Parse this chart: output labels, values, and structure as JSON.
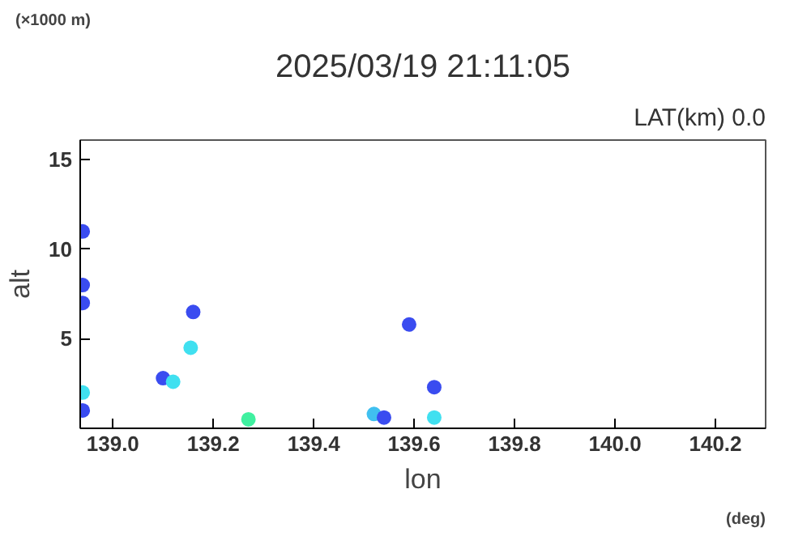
{
  "chart_data": {
    "type": "scatter",
    "title": "2025/03/19 21:11:05",
    "subtitle": "LAT(km) 0.0",
    "xlabel": "lon",
    "ylabel": "alt",
    "annotations": [
      "(×1000 m)",
      "(deg)"
    ],
    "x": [
      138.94,
      138.94,
      138.94,
      138.94,
      138.94,
      139.1,
      139.12,
      139.16,
      139.155,
      139.27,
      139.59,
      139.52,
      139.54,
      139.64,
      139.64
    ],
    "values": [
      11.0,
      8.0,
      7.0,
      2.0,
      1.0,
      2.8,
      2.6,
      6.5,
      4.5,
      0.5,
      5.8,
      0.8,
      0.6,
      2.3,
      0.6
    ],
    "colors": [
      "#3a4cf0",
      "#3a4cf0",
      "#3a4cf0",
      "#40e0f0",
      "#3a4cf0",
      "#3a4cf0",
      "#40e0f0",
      "#3a4cf0",
      "#40e0f0",
      "#40f0a0",
      "#3a4cf0",
      "#40c0f0",
      "#3a4cf0",
      "#3a4cf0",
      "#40e0f0"
    ],
    "xlim": [
      138.935,
      140.3
    ],
    "ylim": [
      0,
      16.1
    ],
    "xticks": [
      {
        "value": 139.0,
        "label": "139.0"
      },
      {
        "value": 139.2,
        "label": "139.2"
      },
      {
        "value": 139.4,
        "label": "139.4"
      },
      {
        "value": 139.6,
        "label": "139.6"
      },
      {
        "value": 139.8,
        "label": "139.8"
      },
      {
        "value": 140.0,
        "label": "140.0"
      },
      {
        "value": 140.2,
        "label": "140.2"
      }
    ],
    "yticks": [
      5,
      10,
      15
    ],
    "grid": false,
    "marker": "circle"
  }
}
